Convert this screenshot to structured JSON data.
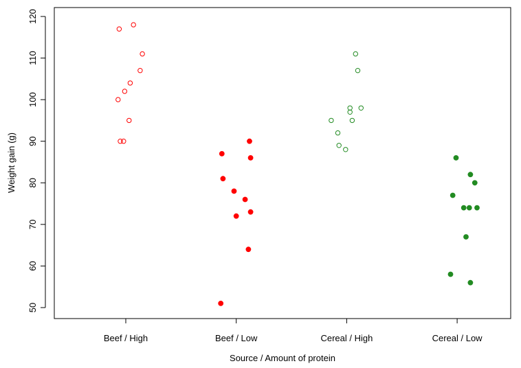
{
  "chart_data": {
    "type": "scatter",
    "title": "",
    "xlabel": "Source / Amount of protein",
    "ylabel": "Weight gain (g)",
    "ylim": [
      50,
      120
    ],
    "yticks": [
      50,
      60,
      70,
      80,
      90,
      100,
      110,
      120
    ],
    "grid": false,
    "legend": "none",
    "categories": [
      "Beef / High",
      "Beef / Low",
      "Cereal / High",
      "Cereal / Low"
    ],
    "series": [
      {
        "category": "Beef / High",
        "color": "#ff0000",
        "marker": "open-circle",
        "points": [
          {
            "jitter": -0.06,
            "y": 117
          },
          {
            "jitter": 0.07,
            "y": 118
          },
          {
            "jitter": 0.15,
            "y": 111
          },
          {
            "jitter": 0.13,
            "y": 107
          },
          {
            "jitter": 0.04,
            "y": 104
          },
          {
            "jitter": -0.01,
            "y": 102
          },
          {
            "jitter": -0.07,
            "y": 100
          },
          {
            "jitter": 0.03,
            "y": 95
          },
          {
            "jitter": -0.05,
            "y": 90
          },
          {
            "jitter": -0.02,
            "y": 90
          }
        ]
      },
      {
        "category": "Beef / Low",
        "color": "#ff0000",
        "marker": "filled-circle",
        "points": [
          {
            "jitter": -0.13,
            "y": 87
          },
          {
            "jitter": 0.12,
            "y": 90
          },
          {
            "jitter": 0.13,
            "y": 86
          },
          {
            "jitter": -0.12,
            "y": 81
          },
          {
            "jitter": -0.02,
            "y": 78
          },
          {
            "jitter": 0.08,
            "y": 76
          },
          {
            "jitter": 0.13,
            "y": 73
          },
          {
            "jitter": 0.0,
            "y": 72
          },
          {
            "jitter": 0.11,
            "y": 64
          },
          {
            "jitter": -0.14,
            "y": 51
          }
        ]
      },
      {
        "category": "Cereal / High",
        "color": "#228b22",
        "marker": "open-circle",
        "points": [
          {
            "jitter": 0.08,
            "y": 111
          },
          {
            "jitter": 0.1,
            "y": 107
          },
          {
            "jitter": 0.03,
            "y": 98
          },
          {
            "jitter": 0.13,
            "y": 98
          },
          {
            "jitter": 0.03,
            "y": 97
          },
          {
            "jitter": -0.14,
            "y": 95
          },
          {
            "jitter": 0.05,
            "y": 95
          },
          {
            "jitter": -0.08,
            "y": 92
          },
          {
            "jitter": -0.07,
            "y": 89
          },
          {
            "jitter": -0.01,
            "y": 88
          }
        ]
      },
      {
        "category": "Cereal / Low",
        "color": "#228b22",
        "marker": "filled-circle",
        "points": [
          {
            "jitter": -0.01,
            "y": 86
          },
          {
            "jitter": 0.12,
            "y": 82
          },
          {
            "jitter": 0.16,
            "y": 80
          },
          {
            "jitter": -0.04,
            "y": 77
          },
          {
            "jitter": 0.06,
            "y": 74
          },
          {
            "jitter": 0.11,
            "y": 74
          },
          {
            "jitter": 0.18,
            "y": 74
          },
          {
            "jitter": 0.08,
            "y": 67
          },
          {
            "jitter": -0.06,
            "y": 58
          },
          {
            "jitter": 0.12,
            "y": 56
          }
        ]
      }
    ]
  }
}
